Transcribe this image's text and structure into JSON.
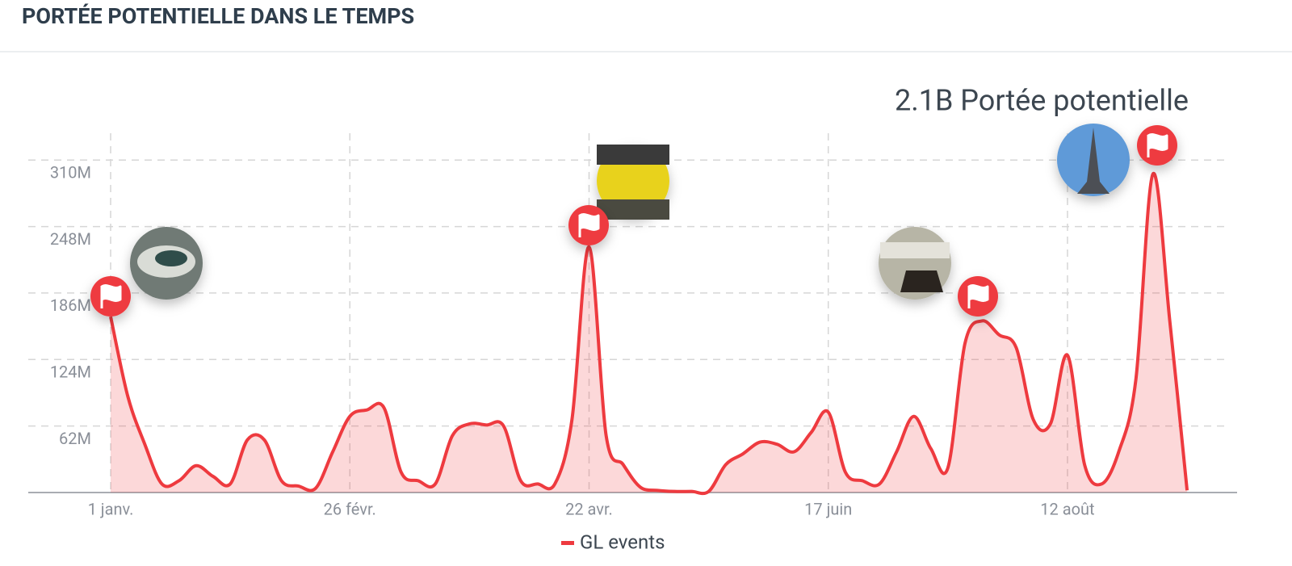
{
  "chart_data": {
    "type": "area",
    "title": "PORTÉE POTENTIELLE DANS LE TEMPS",
    "annotation": "2.1B Portée potentielle",
    "categories": [
      "1 janv.",
      null,
      null,
      null,
      null,
      null,
      null,
      null,
      null,
      null,
      null,
      null,
      null,
      null,
      "26 févr.",
      null,
      null,
      null,
      null,
      null,
      null,
      null,
      null,
      null,
      null,
      null,
      null,
      null,
      "22 avr.",
      null,
      null,
      null,
      null,
      null,
      null,
      null,
      null,
      null,
      null,
      null,
      null,
      null,
      "17 juin",
      null,
      null,
      null,
      null,
      null,
      null,
      null,
      null,
      null,
      null,
      null,
      null,
      null,
      "12 août",
      null,
      null,
      null,
      null,
      null,
      null,
      null
    ],
    "series": [
      {
        "name": "GL events",
        "color": "#ee3a3f",
        "values": [
          164000000,
          90000000,
          45000000,
          8000000,
          11000000,
          25000000,
          15000000,
          8000000,
          49000000,
          49000000,
          11000000,
          6000000,
          4000000,
          38000000,
          71000000,
          77000000,
          79000000,
          19000000,
          11000000,
          8000000,
          53000000,
          64000000,
          63000000,
          62000000,
          11000000,
          8000000,
          8000000,
          68000000,
          229000000,
          53000000,
          26000000,
          5000000,
          2000000,
          1000000,
          1000000,
          1000000,
          26000000,
          36000000,
          47000000,
          45000000,
          38000000,
          56000000,
          75000000,
          19000000,
          11000000,
          8000000,
          38000000,
          71000000,
          41000000,
          23000000,
          139000000,
          160000000,
          147000000,
          135000000,
          68000000,
          64000000,
          128000000,
          26000000,
          8000000,
          38000000,
          105000000,
          297000000,
          158000000,
          2000000
        ]
      }
    ],
    "ylim": [
      0,
      335000000
    ],
    "yticks": [
      {
        "value": 62000000,
        "label": "62M"
      },
      {
        "value": 124000000,
        "label": "124M"
      },
      {
        "value": 186000000,
        "label": "186M"
      },
      {
        "value": 248000000,
        "label": "248M"
      },
      {
        "value": 310000000,
        "label": "310M"
      }
    ],
    "grid": true
  }
}
